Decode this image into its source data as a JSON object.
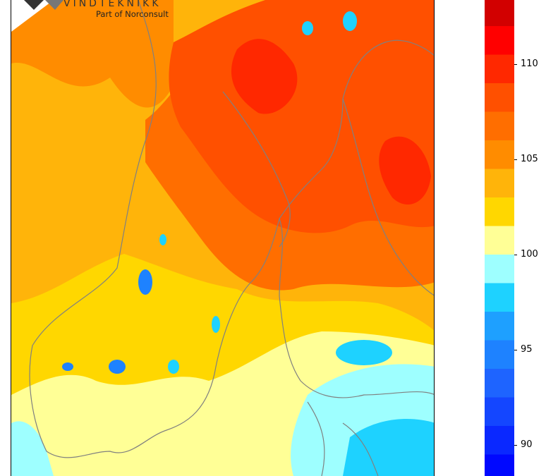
{
  "logo": {
    "brand": "VINDTEKNIKK",
    "tagline": "Part of Norconsult"
  },
  "colorbar": {
    "levels": [
      {
        "value": 88,
        "color": "#0008ff"
      },
      {
        "value": 89.5,
        "color": "#0a28ff"
      },
      {
        "value": 91,
        "color": "#1446ff"
      },
      {
        "value": 92.5,
        "color": "#1e64ff"
      },
      {
        "value": 94,
        "color": "#1e82ff"
      },
      {
        "value": 95.5,
        "color": "#1ea0ff"
      },
      {
        "value": 97,
        "color": "#1ed2ff"
      },
      {
        "value": 98.5,
        "color": "#9effff"
      },
      {
        "value": 100,
        "color": "#ffff96"
      },
      {
        "value": 101.5,
        "color": "#ffd700"
      },
      {
        "value": 103,
        "color": "#ffb40a"
      },
      {
        "value": 104.5,
        "color": "#ff8c00"
      },
      {
        "value": 106,
        "color": "#ff6e00"
      },
      {
        "value": 107.5,
        "color": "#ff5000"
      },
      {
        "value": 109,
        "color": "#ff2800"
      },
      {
        "value": 110.5,
        "color": "#ff0000"
      },
      {
        "value": 112,
        "color": "#d20000"
      }
    ],
    "ticks": [
      "90",
      "95",
      "100",
      "105",
      "110"
    ]
  },
  "map": {
    "coastline_color": "#808080",
    "colors": {
      "light_blue": "#9effff",
      "cyan": "#1ed2ff",
      "blue": "#1e82ff",
      "pale_yellow": "#ffff96",
      "yellow": "#ffd700",
      "amber": "#ffb40a",
      "orange": "#ff8c00",
      "dark_orange": "#ff6e00",
      "red_orange": "#ff5000",
      "red": "#ff2800"
    }
  }
}
